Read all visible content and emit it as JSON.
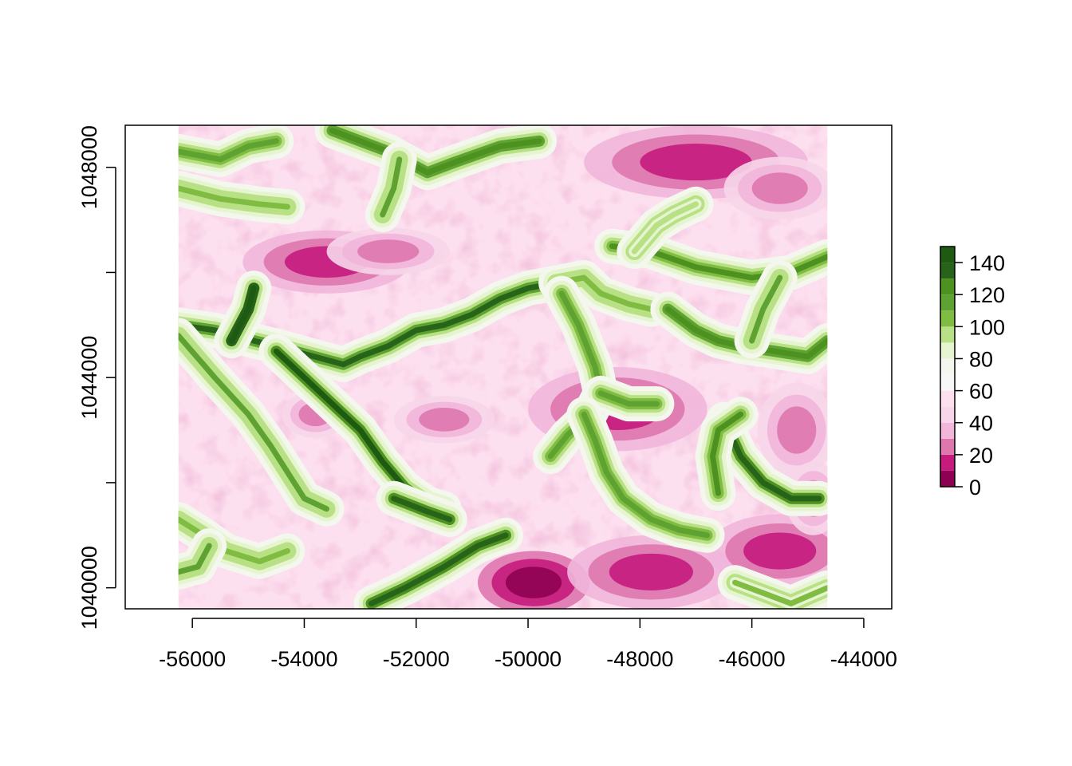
{
  "chart_data": {
    "type": "heatmap",
    "title": "",
    "xlabel": "",
    "ylabel": "",
    "xlim": [
      -57200,
      -43500
    ],
    "ylim": [
      1039600,
      1048800
    ],
    "raster_extent": {
      "x": [
        -56250,
        -44650
      ],
      "y": [
        1039600,
        1048800
      ]
    },
    "x_ticks": [
      -56000,
      -54000,
      -52000,
      -50000,
      -48000,
      -46000,
      -44000
    ],
    "x_tick_labels": [
      "-56000",
      "-54000",
      "-52000",
      "-50000",
      "-48000",
      "-46000",
      "-44000"
    ],
    "y_ticks": [
      1040000,
      1042000,
      1044000,
      1046000,
      1048000
    ],
    "y_tick_labels": [
      "1040000",
      "",
      "1044000",
      "",
      "1048000"
    ],
    "legend": {
      "position": "right",
      "breaks": [
        0,
        10,
        20,
        30,
        40,
        50,
        60,
        70,
        80,
        90,
        100,
        110,
        120,
        130,
        140,
        150
      ],
      "tick_values": [
        0,
        20,
        40,
        60,
        80,
        100,
        120,
        140
      ],
      "tick_labels": [
        "0",
        "20",
        "40",
        "60",
        "80",
        "100",
        "120",
        "140"
      ],
      "colors": [
        "#8e0152",
        "#c51b7d",
        "#de77ae",
        "#f1b6da",
        "#f7d6e9",
        "#fde0ef",
        "#f7f7f7",
        "#f4f7ee",
        "#e6f5d0",
        "#b8e186",
        "#7fbc41",
        "#5ea232",
        "#4d9221",
        "#276419",
        "#1f5a12"
      ]
    },
    "channels": [
      {
        "points": [
          [
            -56250,
            1048300
          ],
          [
            -55500,
            1048150
          ],
          [
            -55000,
            1048400
          ],
          [
            -54500,
            1048500
          ]
        ],
        "value": 118
      },
      {
        "points": [
          [
            -53500,
            1048700
          ],
          [
            -53000,
            1048500
          ],
          [
            -52500,
            1048300
          ],
          [
            -51800,
            1047900
          ],
          [
            -51300,
            1048100
          ],
          [
            -50500,
            1048400
          ],
          [
            -49800,
            1048500
          ]
        ],
        "value": 128
      },
      {
        "points": [
          [
            -52300,
            1048150
          ],
          [
            -52400,
            1047600
          ],
          [
            -52600,
            1047100
          ]
        ],
        "value": 110
      },
      {
        "points": [
          [
            -56250,
            1047600
          ],
          [
            -55500,
            1047400
          ],
          [
            -54800,
            1047300
          ],
          [
            -54300,
            1047250
          ]
        ],
        "value": 108
      },
      {
        "points": [
          [
            -56250,
            1045000
          ],
          [
            -55600,
            1044900
          ],
          [
            -55200,
            1044800
          ],
          [
            -54900,
            1044700
          ],
          [
            -54500,
            1044600
          ],
          [
            -54000,
            1044450
          ],
          [
            -53300,
            1044250
          ],
          [
            -53000,
            1044400
          ],
          [
            -52500,
            1044600
          ],
          [
            -52000,
            1044900
          ],
          [
            -51500,
            1045000
          ],
          [
            -51000,
            1045200
          ],
          [
            -50500,
            1045500
          ],
          [
            -50000,
            1045700
          ],
          [
            -49500,
            1045800
          ]
        ],
        "value": 132
      },
      {
        "points": [
          [
            -54900,
            1045700
          ],
          [
            -55000,
            1045300
          ],
          [
            -55300,
            1044700
          ]
        ],
        "value": 145
      },
      {
        "points": [
          [
            -49500,
            1045800
          ],
          [
            -49000,
            1045900
          ],
          [
            -48700,
            1045600
          ],
          [
            -48200,
            1045400
          ],
          [
            -47800,
            1045300
          ]
        ],
        "value": 108
      },
      {
        "points": [
          [
            -48500,
            1046500
          ],
          [
            -47800,
            1046400
          ],
          [
            -47000,
            1046100
          ],
          [
            -46000,
            1045900
          ],
          [
            -45300,
            1046000
          ],
          [
            -44650,
            1046300
          ]
        ],
        "value": 122
      },
      {
        "points": [
          [
            -48100,
            1046400
          ],
          [
            -47700,
            1046900
          ],
          [
            -47400,
            1047100
          ],
          [
            -47000,
            1047300
          ]
        ],
        "value": 98
      },
      {
        "points": [
          [
            -47500,
            1045300
          ],
          [
            -47000,
            1044900
          ],
          [
            -46600,
            1044700
          ],
          [
            -46200,
            1044600
          ],
          [
            -45600,
            1044500
          ],
          [
            -45000,
            1044400
          ],
          [
            -44650,
            1044700
          ]
        ],
        "value": 125
      },
      {
        "points": [
          [
            -49400,
            1045600
          ],
          [
            -49100,
            1045000
          ],
          [
            -48800,
            1044200
          ],
          [
            -48700,
            1043700
          ],
          [
            -48900,
            1043300
          ],
          [
            -49300,
            1042900
          ],
          [
            -49600,
            1042500
          ]
        ],
        "value": 115
      },
      {
        "points": [
          [
            -48700,
            1043700
          ],
          [
            -48200,
            1043500
          ],
          [
            -47700,
            1043500
          ]
        ],
        "value": 115
      },
      {
        "points": [
          [
            -49000,
            1043300
          ],
          [
            -48800,
            1042800
          ],
          [
            -48600,
            1042200
          ],
          [
            -48300,
            1041700
          ],
          [
            -47800,
            1041300
          ],
          [
            -47300,
            1041100
          ],
          [
            -46800,
            1041000
          ]
        ],
        "value": 118
      },
      {
        "points": [
          [
            -56250,
            1044800
          ],
          [
            -55600,
            1044000
          ],
          [
            -55000,
            1043300
          ],
          [
            -54600,
            1042700
          ],
          [
            -54300,
            1042200
          ],
          [
            -54000,
            1041700
          ],
          [
            -53600,
            1041500
          ]
        ],
        "value": 112
      },
      {
        "points": [
          [
            -54500,
            1044500
          ],
          [
            -54000,
            1044000
          ],
          [
            -53500,
            1043500
          ],
          [
            -53000,
            1043000
          ],
          [
            -52600,
            1042400
          ],
          [
            -52200,
            1041900
          ],
          [
            -51800,
            1041600
          ],
          [
            -51500,
            1041500
          ]
        ],
        "value": 140
      },
      {
        "points": [
          [
            -52400,
            1041700
          ],
          [
            -51800,
            1041450
          ],
          [
            -51400,
            1041300
          ]
        ],
        "value": 138
      },
      {
        "points": [
          [
            -56250,
            1041300
          ],
          [
            -55800,
            1041000
          ],
          [
            -55400,
            1040700
          ],
          [
            -54800,
            1040500
          ],
          [
            -54300,
            1040700
          ]
        ],
        "value": 108
      },
      {
        "points": [
          [
            -52800,
            1039700
          ],
          [
            -52200,
            1040000
          ],
          [
            -51500,
            1040400
          ],
          [
            -50900,
            1040800
          ],
          [
            -50400,
            1041000
          ]
        ],
        "value": 135
      },
      {
        "points": [
          [
            -46500,
            1043200
          ],
          [
            -46200,
            1042500
          ],
          [
            -45800,
            1042000
          ],
          [
            -45300,
            1041700
          ],
          [
            -44800,
            1041700
          ]
        ],
        "value": 138
      },
      {
        "points": [
          [
            -46200,
            1043300
          ],
          [
            -46600,
            1043000
          ],
          [
            -46700,
            1042500
          ],
          [
            -46600,
            1041800
          ]
        ],
        "value": 120
      },
      {
        "points": [
          [
            -45500,
            1045900
          ],
          [
            -45800,
            1045300
          ],
          [
            -46000,
            1044700
          ]
        ],
        "value": 112
      },
      {
        "points": [
          [
            -46300,
            1040100
          ],
          [
            -45800,
            1039900
          ],
          [
            -45300,
            1039700
          ],
          [
            -44650,
            1040000
          ]
        ],
        "value": 102
      },
      {
        "points": [
          [
            -56250,
            1040300
          ],
          [
            -55900,
            1040400
          ],
          [
            -55700,
            1040800
          ]
        ],
        "value": 110
      }
    ],
    "low_zones": [
      {
        "center": [
          -53600,
          1046200
        ],
        "radius": [
          1500,
          600
        ],
        "value": 18
      },
      {
        "center": [
          -52500,
          1046400
        ],
        "radius": [
          1100,
          450
        ],
        "value": 22
      },
      {
        "center": [
          -47000,
          1048100
        ],
        "radius": [
          2000,
          700
        ],
        "value": 14
      },
      {
        "center": [
          -45500,
          1047600
        ],
        "radius": [
          1000,
          600
        ],
        "value": 22
      },
      {
        "center": [
          -48400,
          1043400
        ],
        "radius": [
          1600,
          800
        ],
        "value": 18
      },
      {
        "center": [
          -51500,
          1043200
        ],
        "radius": [
          900,
          450
        ],
        "value": 22
      },
      {
        "center": [
          -53800,
          1043300
        ],
        "radius": [
          600,
          450
        ],
        "value": 20
      },
      {
        "center": [
          -49900,
          1040100
        ],
        "radius": [
          1000,
          600
        ],
        "value": 4
      },
      {
        "center": [
          -47800,
          1040300
        ],
        "radius": [
          1500,
          700
        ],
        "value": 14
      },
      {
        "center": [
          -45500,
          1040700
        ],
        "radius": [
          1300,
          700
        ],
        "value": 18
      },
      {
        "center": [
          -45200,
          1043000
        ],
        "radius": [
          700,
          900
        ],
        "value": 22
      },
      {
        "center": [
          -44900,
          1041700
        ],
        "radius": [
          500,
          700
        ],
        "value": 20
      }
    ],
    "base_value": 52
  }
}
